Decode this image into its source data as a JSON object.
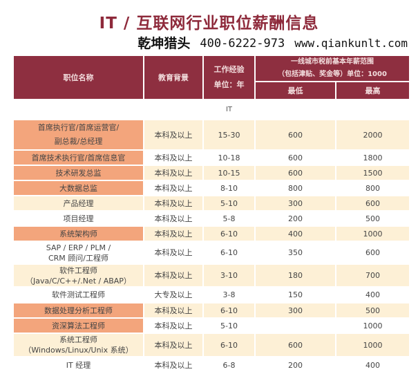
{
  "title": "IT / 互联网行业职位薪酬信息",
  "header": {
    "position": "职位名称",
    "education": "教育背景",
    "experience_line1": "工作经验",
    "experience_line2": "单位：年",
    "salary_line1": "一线城市税前基本年薪范围",
    "salary_line2": "（包括津贴、奖金等）单位：1000",
    "min": "最低",
    "max": "最高"
  },
  "section": "IT",
  "highlight_color": "#f3a57c",
  "header_color": "#8e2f40",
  "rows": [
    {
      "name1": "首席执行官/首席运营官/",
      "name2": "副总裁/总经理",
      "edu": "本科及以上",
      "exp": "15-30",
      "min": "600",
      "max": "2000",
      "hl": true
    },
    {
      "name1": "首席技术执行官/首席信息官",
      "name2": "",
      "edu": "本科及以上",
      "exp": "10-18",
      "min": "600",
      "max": "1800",
      "hl": true
    },
    {
      "name1": "技术研发总监",
      "name2": "",
      "edu": "本科及以上",
      "exp": "10-15",
      "min": "600",
      "max": "1500",
      "hl": true
    },
    {
      "name1": "大数据总监",
      "name2": "",
      "edu": "本科及以上",
      "exp": "8-10",
      "min": "800",
      "max": "800",
      "hl": true
    },
    {
      "name1": "产品经理",
      "name2": "",
      "edu": "本科及以上",
      "exp": "5-10",
      "min": "300",
      "max": "600",
      "hl": false
    },
    {
      "name1": "项目经理",
      "name2": "",
      "edu": "本科及以上",
      "exp": "5-8",
      "min": "200",
      "max": "500",
      "hl": false
    },
    {
      "name1": "系统架构师",
      "name2": "",
      "edu": "本科及以上",
      "exp": "6-10",
      "min": "400",
      "max": "1000",
      "hl": true
    },
    {
      "name1": "SAP / ERP / PLM /",
      "name2": "CRM 顾问/工程师",
      "edu": "本科及以上",
      "exp": "6-10",
      "min": "350",
      "max": "600",
      "hl": false
    },
    {
      "name1": "软件工程师",
      "name2": "（Java/C/C++/.Net / ABAP）",
      "edu": "本科及以上",
      "exp": "3-10",
      "min": "180",
      "max": "700",
      "hl": false
    },
    {
      "name1": "软件测试工程师",
      "name2": "",
      "edu": "大专及以上",
      "exp": "3-8",
      "min": "150",
      "max": "400",
      "hl": false
    },
    {
      "name1": "数据处理分析工程师",
      "name2": "",
      "edu": "本科及以上",
      "exp": "6-10",
      "min": "300",
      "max": "500",
      "hl": true
    },
    {
      "name1": "资深算法工程师",
      "name2": "",
      "edu": "本科及以上",
      "exp": "5-10",
      "min": "",
      "max": "1000",
      "hl": true
    },
    {
      "name1": "系统工程师",
      "name2": "（Windows/Linux/Unix 系统）",
      "edu": "本科及以上",
      "exp": "6-10",
      "min": "600",
      "max": "1000",
      "hl": false
    },
    {
      "name1": "IT 经理",
      "name2": "",
      "edu": "本科及以上",
      "exp": "6-8",
      "min": "200",
      "max": "400",
      "hl": false
    }
  ],
  "watermark": {
    "name": "乾坤猎头",
    "phone": "400-6222-973",
    "url": "www.qiankunlt.com"
  }
}
